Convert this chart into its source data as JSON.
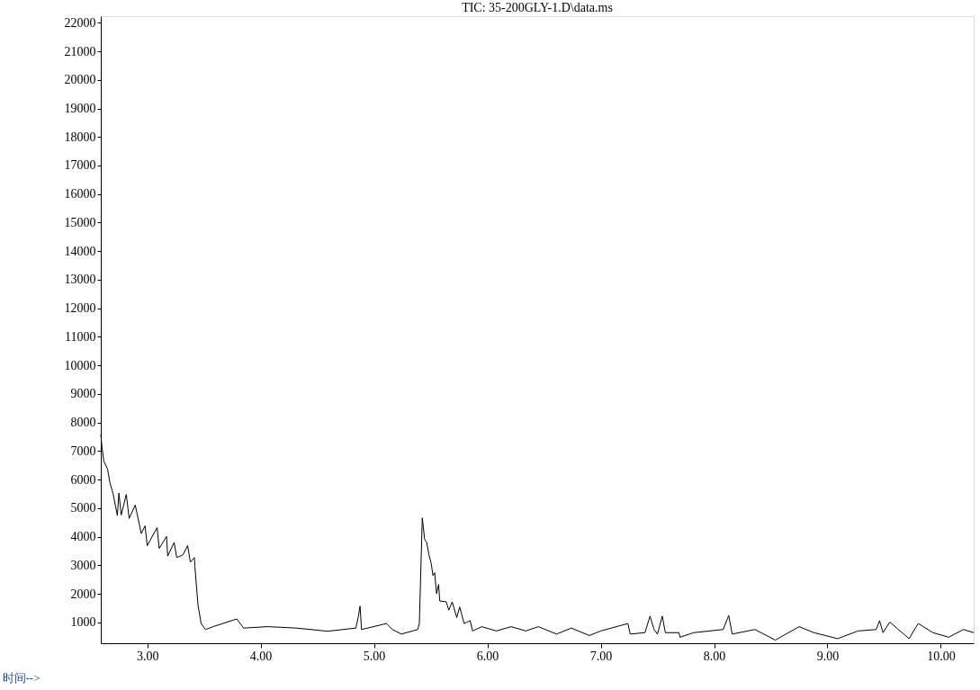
{
  "chart_data": {
    "type": "line",
    "title": "TIC: 35-200GLY-1.D\\data.ms",
    "xlabel": "时间-->",
    "x": [
      2.59,
      2.6,
      2.617,
      2.65,
      2.67,
      2.7,
      2.736,
      2.75,
      2.77,
      2.815,
      2.84,
      2.894,
      2.947,
      2.98,
      3.0,
      3.087,
      3.105,
      3.17,
      3.18,
      3.237,
      3.26,
      3.316,
      3.356,
      3.38,
      3.416,
      3.42,
      3.448,
      3.475,
      3.514,
      3.58,
      3.79,
      3.85,
      4.06,
      4.32,
      4.59,
      4.84,
      4.86,
      4.877,
      4.89,
      5.11,
      5.163,
      5.24,
      5.386,
      5.4,
      5.426,
      5.447,
      5.465,
      5.484,
      5.505,
      5.52,
      5.535,
      5.552,
      5.57,
      5.58,
      5.637,
      5.66,
      5.69,
      5.73,
      5.756,
      5.795,
      5.848,
      5.87,
      5.95,
      6.08,
      6.21,
      6.34,
      6.45,
      6.61,
      6.74,
      6.9,
      7.0,
      7.24,
      7.26,
      7.39,
      7.435,
      7.47,
      7.5,
      7.543,
      7.57,
      7.69,
      7.7,
      7.82,
      8.08,
      8.129,
      8.16,
      8.36,
      8.54,
      8.75,
      8.88,
      9.09,
      9.27,
      9.43,
      9.46,
      9.49,
      9.55,
      9.72,
      9.8,
      9.93,
      10.07,
      10.2,
      10.29
    ],
    "series": [
      {
        "color": "#000000",
        "values": [
          7580,
          7160,
          6640,
          6370,
          5900,
          5480,
          4740,
          5530,
          4760,
          5480,
          4640,
          5110,
          4110,
          4380,
          3690,
          4320,
          3590,
          4010,
          3320,
          3800,
          3270,
          3370,
          3690,
          3110,
          3270,
          2960,
          1590,
          960,
          750,
          850,
          1120,
          800,
          850,
          800,
          690,
          800,
          1170,
          1570,
          750,
          960,
          750,
          590,
          750,
          960,
          4660,
          3900,
          3800,
          3380,
          3060,
          2640,
          2740,
          2010,
          2330,
          1750,
          1720,
          1430,
          1720,
          1170,
          1540,
          960,
          1060,
          700,
          850,
          700,
          850,
          700,
          850,
          590,
          800,
          540,
          700,
          960,
          590,
          640,
          1220,
          750,
          590,
          1220,
          640,
          640,
          480,
          640,
          750,
          1240,
          590,
          750,
          380,
          850,
          640,
          430,
          700,
          750,
          1060,
          640,
          1010,
          430,
          960,
          640,
          480,
          750,
          640
        ]
      }
    ],
    "xlim": [
      2.59,
      10.29
    ],
    "xticks": [
      {
        "value": 3,
        "label": "3.00"
      },
      {
        "value": 4,
        "label": "4.00"
      },
      {
        "value": 5,
        "label": "5.00"
      },
      {
        "value": 6,
        "label": "6.00"
      },
      {
        "value": 7,
        "label": "7.00"
      },
      {
        "value": 8,
        "label": "8.00"
      },
      {
        "value": 9,
        "label": "9.00"
      },
      {
        "value": 10,
        "label": "10.00"
      }
    ],
    "ylim": [
      270,
      22230
    ],
    "yticks": [
      1000,
      2000,
      3000,
      4000,
      5000,
      6000,
      7000,
      8000,
      9000,
      10000,
      11000,
      12000,
      13000,
      14000,
      15000,
      16000,
      17000,
      18000,
      19000,
      20000,
      21000,
      22000
    ],
    "grid": false,
    "legend": false,
    "marker": "none",
    "line_style": "solid"
  }
}
